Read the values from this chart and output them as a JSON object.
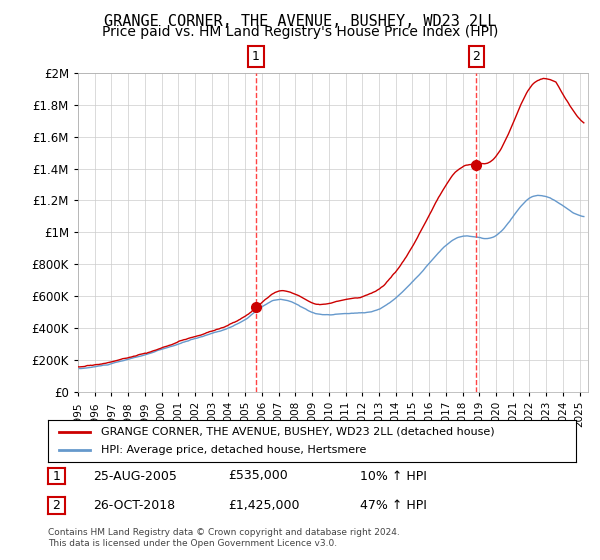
{
  "title": "GRANGE CORNER, THE AVENUE, BUSHEY, WD23 2LL",
  "subtitle": "Price paid vs. HM Land Registry's House Price Index (HPI)",
  "title_fontsize": 11,
  "subtitle_fontsize": 10,
  "xlim": [
    1995.0,
    2025.5
  ],
  "ylim": [
    0,
    2000000
  ],
  "yticks": [
    0,
    200000,
    400000,
    600000,
    800000,
    1000000,
    1200000,
    1400000,
    1600000,
    1800000,
    2000000
  ],
  "ytick_labels": [
    "£0",
    "£200K",
    "£400K",
    "£600K",
    "£800K",
    "£1M",
    "£1.2M",
    "£1.4M",
    "£1.6M",
    "£1.8M",
    "£2M"
  ],
  "xtick_years": [
    1995,
    1996,
    1997,
    1998,
    1999,
    2000,
    2001,
    2002,
    2003,
    2004,
    2005,
    2006,
    2007,
    2008,
    2009,
    2010,
    2011,
    2012,
    2013,
    2014,
    2015,
    2016,
    2017,
    2018,
    2019,
    2020,
    2021,
    2022,
    2023,
    2024,
    2025
  ],
  "red_line_color": "#cc0000",
  "blue_line_color": "#6699cc",
  "marker_color": "#cc0000",
  "vline_color": "#ff4444",
  "transaction1_x": 2005.646,
  "transaction1_y": 535000,
  "transaction1_label": "1",
  "transaction2_x": 2018.815,
  "transaction2_y": 1425000,
  "transaction2_label": "2",
  "legend_red_label": "GRANGE CORNER, THE AVENUE, BUSHEY, WD23 2LL (detached house)",
  "legend_blue_label": "HPI: Average price, detached house, Hertsmere",
  "table_rows": [
    {
      "num": "1",
      "date": "25-AUG-2005",
      "price": "£535,000",
      "hpi": "10% ↑ HPI"
    },
    {
      "num": "2",
      "date": "26-OCT-2018",
      "price": "£1,425,000",
      "hpi": "47% ↑ HPI"
    }
  ],
  "footnote": "Contains HM Land Registry data © Crown copyright and database right 2024.\nThis data is licensed under the Open Government Licence v3.0.",
  "bg_color": "#ffffff",
  "grid_color": "#cccccc"
}
